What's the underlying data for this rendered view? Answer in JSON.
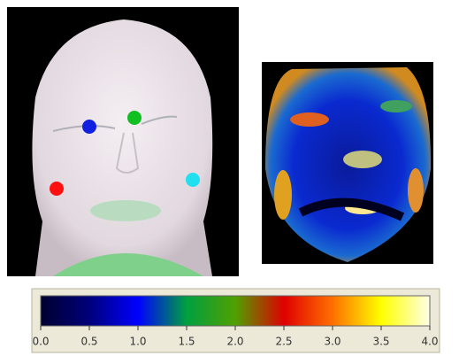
{
  "colorbar": {
    "lim": [
      0,
      4
    ],
    "ticks": [
      {
        "value": 0,
        "label": "0.0"
      },
      0.5,
      {
        "value": 1,
        "label": "1.0"
      },
      1.5,
      {
        "value": 2,
        "label": "2.0"
      },
      2.5,
      {
        "value": 3,
        "label": "3.0"
      },
      3.5,
      {
        "value": 4,
        "label": "4.0"
      }
    ],
    "colors": [
      "#000030",
      "#00007a",
      "#0000ff",
      "#00a040",
      "#50a000",
      "#e00000",
      "#ff7000",
      "#ffff00",
      "#ffffe8"
    ]
  }
}
